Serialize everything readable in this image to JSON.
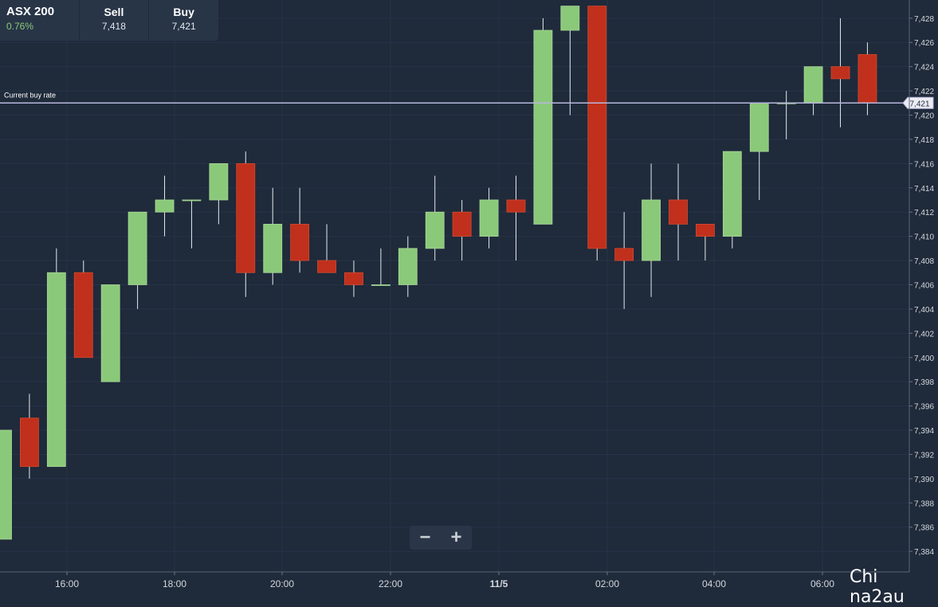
{
  "instrument": {
    "name": "ASX 200",
    "change": "0.76%"
  },
  "sell": {
    "label": "Sell",
    "value": "7,418"
  },
  "buy": {
    "label": "Buy",
    "value": "7,421"
  },
  "current_rate": {
    "label": "Current buy rate",
    "value_label": "7,421"
  },
  "zoom": {
    "out": "−",
    "in": "+"
  },
  "watermark": "Chi na2au",
  "colors": {
    "background": "#1f2a3a",
    "up": "#8bc97a",
    "down": "#c0301c",
    "rate_line": "#b7b8dc",
    "axis_text": "#d4d8de",
    "grid": "#26344a"
  },
  "chart_data": {
    "type": "candlestick",
    "ylim": [
      7382.3,
      7429.5
    ],
    "yticks": [
      7384,
      7386,
      7388,
      7390,
      7392,
      7394,
      7396,
      7398,
      7400,
      7402,
      7404,
      7406,
      7408,
      7410,
      7412,
      7414,
      7416,
      7418,
      7420,
      7422,
      7424,
      7426,
      7428
    ],
    "ytick_labels": [
      "7,384",
      "7,386",
      "7,388",
      "7,390",
      "7,392",
      "7,394",
      "7,396",
      "7,398",
      "7,400",
      "7,402",
      "7,404",
      "7,406",
      "7,408",
      "7,410",
      "7,412",
      "7,414",
      "7,416",
      "7,418",
      "7,420",
      "7,422",
      "7,424",
      "7,426",
      "7,428"
    ],
    "xtick_labels": [
      "16:00",
      "18:00",
      "20:00",
      "22:00",
      "11/5",
      "02:00",
      "04:00",
      "06:00"
    ],
    "current_rate": 7421,
    "candles": [
      {
        "open": 7385,
        "high": 7394,
        "low": 7385,
        "close": 7394
      },
      {
        "open": 7395,
        "high": 7397,
        "low": 7390,
        "close": 7391
      },
      {
        "open": 7391,
        "high": 7409,
        "low": 7391,
        "close": 7407
      },
      {
        "open": 7407,
        "high": 7408,
        "low": 7400,
        "close": 7400
      },
      {
        "open": 7398,
        "high": 7406,
        "low": 7398,
        "close": 7406
      },
      {
        "open": 7406,
        "high": 7412,
        "low": 7404,
        "close": 7412
      },
      {
        "open": 7412,
        "high": 7415,
        "low": 7410,
        "close": 7413
      },
      {
        "open": 7413,
        "high": 7413,
        "low": 7409,
        "close": 7413
      },
      {
        "open": 7413,
        "high": 7416,
        "low": 7411,
        "close": 7416
      },
      {
        "open": 7416,
        "high": 7417,
        "low": 7405,
        "close": 7407
      },
      {
        "open": 7407,
        "high": 7414,
        "low": 7406,
        "close": 7411
      },
      {
        "open": 7411,
        "high": 7414,
        "low": 7407,
        "close": 7408
      },
      {
        "open": 7408,
        "high": 7411,
        "low": 7407,
        "close": 7407
      },
      {
        "open": 7407,
        "high": 7408,
        "low": 7405,
        "close": 7406
      },
      {
        "open": 7406,
        "high": 7409,
        "low": 7406,
        "close": 7406
      },
      {
        "open": 7406,
        "high": 7410,
        "low": 7405,
        "close": 7409
      },
      {
        "open": 7409,
        "high": 7415,
        "low": 7408,
        "close": 7412
      },
      {
        "open": 7412,
        "high": 7413,
        "low": 7408,
        "close": 7410
      },
      {
        "open": 7410,
        "high": 7414,
        "low": 7409,
        "close": 7413
      },
      {
        "open": 7413,
        "high": 7415,
        "low": 7408,
        "close": 7412
      },
      {
        "open": 7411,
        "high": 7428,
        "low": 7411,
        "close": 7427
      },
      {
        "open": 7427,
        "high": 7429,
        "low": 7420,
        "close": 7429
      },
      {
        "open": 7429,
        "high": 7429,
        "low": 7408,
        "close": 7409
      },
      {
        "open": 7409,
        "high": 7412,
        "low": 7404,
        "close": 7408
      },
      {
        "open": 7408,
        "high": 7416,
        "low": 7405,
        "close": 7413
      },
      {
        "open": 7413,
        "high": 7416,
        "low": 7408,
        "close": 7411
      },
      {
        "open": 7411,
        "high": 7411,
        "low": 7408,
        "close": 7410
      },
      {
        "open": 7410,
        "high": 7417,
        "low": 7409,
        "close": 7417
      },
      {
        "open": 7417,
        "high": 7421,
        "low": 7413,
        "close": 7421
      },
      {
        "open": 7421,
        "high": 7422,
        "low": 7418,
        "close": 7421
      },
      {
        "open": 7421,
        "high": 7424,
        "low": 7420,
        "close": 7424
      },
      {
        "open": 7424,
        "high": 7428,
        "low": 7419,
        "close": 7423
      },
      {
        "open": 7425,
        "high": 7426,
        "low": 7420,
        "close": 7421
      }
    ]
  }
}
